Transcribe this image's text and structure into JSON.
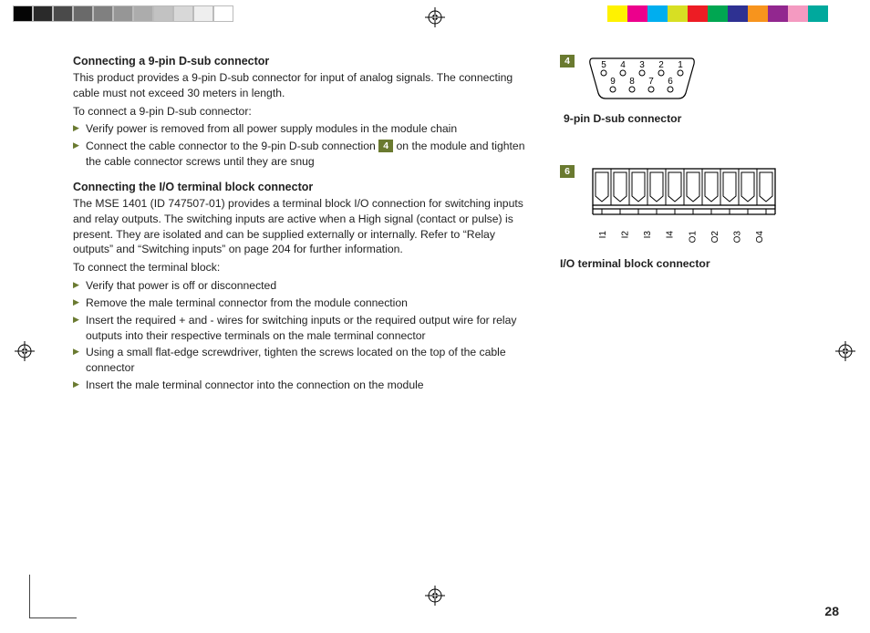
{
  "colorbars": {
    "left_grays": [
      "#050505",
      "#2a2a2a",
      "#4a4a4a",
      "#6a6a6a",
      "#808080",
      "#969696",
      "#acacac",
      "#c2c2c2",
      "#d8d8d8",
      "#eeeeee",
      "#ffffff"
    ],
    "right_hues": [
      "#ffffff",
      "#fff200",
      "#ec008c",
      "#00aeef",
      "#d7df23",
      "#ed1c24",
      "#00a651",
      "#2e3192",
      "#f7941d",
      "#92278f",
      "#f49ac1",
      "#00a99d",
      "#ffffff"
    ]
  },
  "accent_color": "#6a7a30",
  "page_number": "28",
  "sections": [
    {
      "heading": "Connecting a 9-pin D-sub connector",
      "paras": [
        "This product provides a 9-pin D-sub connector for input of analog signals. The connecting cable must not exceed 30 meters in length.",
        "To connect a 9-pin D-sub connector:"
      ],
      "bullets": [
        "Verify power is removed from all power supply modules in the module chain",
        {
          "pre": "Connect the cable connector to the 9-pin D-sub connection ",
          "badge": "4",
          "post": " on the module and tighten the cable connector screws until they are snug"
        }
      ]
    },
    {
      "heading": "Connecting the I/O terminal block connector",
      "paras": [
        "The MSE 1401 (ID 747507-01) provides a terminal block I/O connection for switching inputs and relay outputs. The switching inputs are active when a High signal (contact or pulse) is present. They are isolated and can be supplied externally or internally. Refer to “Relay outputs” and “Switching inputs” on page 204 for further information.",
        "To connect the terminal block:"
      ],
      "bullets": [
        "Verify that power is off or disconnected",
        "Remove the male terminal connector from the module connection",
        "Insert the required + and - wires for switching inputs or the required output wire for relay outputs into their respective terminals on the male terminal connector",
        "Using a small flat-edge screwdriver, tighten the screws located on the top of the cable connector",
        "Insert the male terminal connector into the connection on the module"
      ]
    }
  ],
  "figures": {
    "dsub": {
      "badge": "4",
      "caption": "9-pin D-sub connector",
      "top_row": [
        "5",
        "4",
        "3",
        "2",
        "1"
      ],
      "bottom_row": [
        "9",
        "8",
        "7",
        "6"
      ]
    },
    "terminal": {
      "badge": "6",
      "caption": "I/O terminal block connector",
      "labels": [
        "I1",
        "I2",
        "I3",
        "I4",
        "O1",
        "O2",
        "O3",
        "O4"
      ],
      "slot_count": 10
    }
  }
}
